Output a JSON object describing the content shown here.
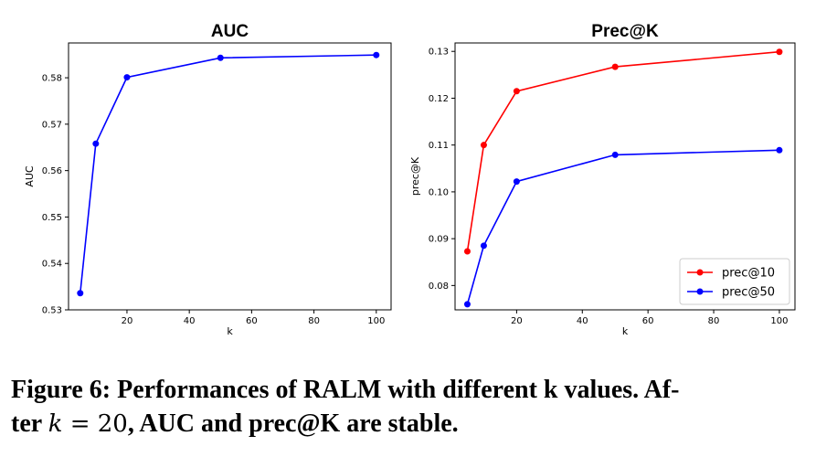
{
  "chart_data": [
    {
      "type": "line",
      "title": "AUC",
      "xlabel": "k",
      "ylabel": "AUC",
      "xlim": [
        1.25,
        104.75
      ],
      "ylim": [
        0.53,
        0.5875
      ],
      "xticks": [
        "20",
        "40",
        "60",
        "80",
        "100"
      ],
      "yticks": [
        "0.53",
        "0.54",
        "0.55",
        "0.56",
        "0.57",
        "0.58"
      ],
      "grid": false,
      "series": [
        {
          "color": "#0000ff",
          "x": [
            5,
            10,
            20,
            50,
            100
          ],
          "y": [
            0.5336,
            0.5658,
            0.5801,
            0.5843,
            0.5849
          ]
        }
      ]
    },
    {
      "type": "line",
      "title": "Prec@K",
      "xlabel": "k",
      "ylabel": "prec@K",
      "xlim": [
        1.25,
        104.75
      ],
      "ylim": [
        0.0748,
        0.1318
      ],
      "xticks": [
        "20",
        "40",
        "60",
        "80",
        "100"
      ],
      "yticks": [
        "0.08",
        "0.09",
        "0.10",
        "0.11",
        "0.12",
        "0.13"
      ],
      "grid": false,
      "legend_position": "bottom-right",
      "series": [
        {
          "name": "prec@10",
          "color": "#ff0000",
          "x": [
            5,
            10,
            20,
            50,
            100
          ],
          "y": [
            0.0873,
            0.11,
            0.1215,
            0.1267,
            0.1299
          ]
        },
        {
          "name": "prec@50",
          "color": "#0000ff",
          "x": [
            5,
            10,
            20,
            50,
            100
          ],
          "y": [
            0.076,
            0.0885,
            0.1022,
            0.1079,
            0.1089
          ]
        }
      ]
    }
  ],
  "caption": {
    "line1": "Figure 6: Performances of RALM with different k values. Af-",
    "line2_prefix": "ter ",
    "line2_math_var": "k",
    "line2_math_rest": " = 20",
    "line2_suffix": ", AUC and prec@K are stable."
  }
}
